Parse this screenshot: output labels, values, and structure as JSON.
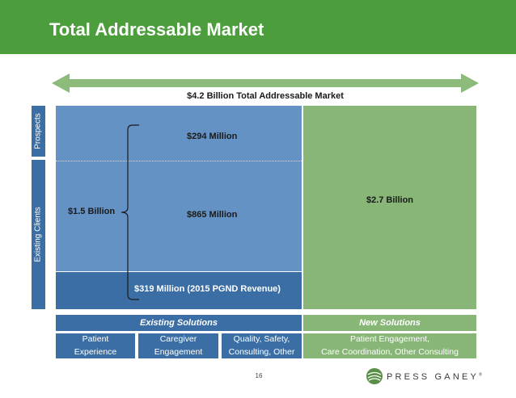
{
  "slide": {
    "title": "Total Addressable Market",
    "tam_label": "$4.2 Billion Total Addressable Market",
    "page_number": "16"
  },
  "side_labels": {
    "prospects": "Prospects",
    "existing_clients": "Existing Clients"
  },
  "market": {
    "prospects_value": "$294 Million",
    "existing_value": "$865 Million",
    "bracket_total": "$1.5 Billion",
    "revenue_value": "$319 Million (2015 PGND Revenue)",
    "new_solutions_value": "$2.7 Billion"
  },
  "solutions": {
    "existing_header": "Existing Solutions",
    "new_header": "New Solutions",
    "cells": [
      {
        "line1": "Patient",
        "line2": "Experience"
      },
      {
        "line1": "Caregiver",
        "line2": "Engagement"
      },
      {
        "line1": "Quality, Safety,",
        "line2": "Consulting, Other"
      },
      {
        "line1": "Patient Engagement,",
        "line2": "Care Coordination, Other Consulting"
      }
    ]
  },
  "logo": {
    "text": "PRESS GANEY",
    "mark": "®"
  },
  "colors": {
    "header_green": "#4c9e3c",
    "dark_blue": "#3a6ea4",
    "light_blue": "#6592c4",
    "light_green": "#87b677",
    "arrow_green": "#8dbb7b"
  },
  "icons": {
    "arrow": "double-headed-arrow-icon",
    "bracket": "curly-bracket-icon",
    "logo_mark": "press-ganey-globe-icon"
  }
}
